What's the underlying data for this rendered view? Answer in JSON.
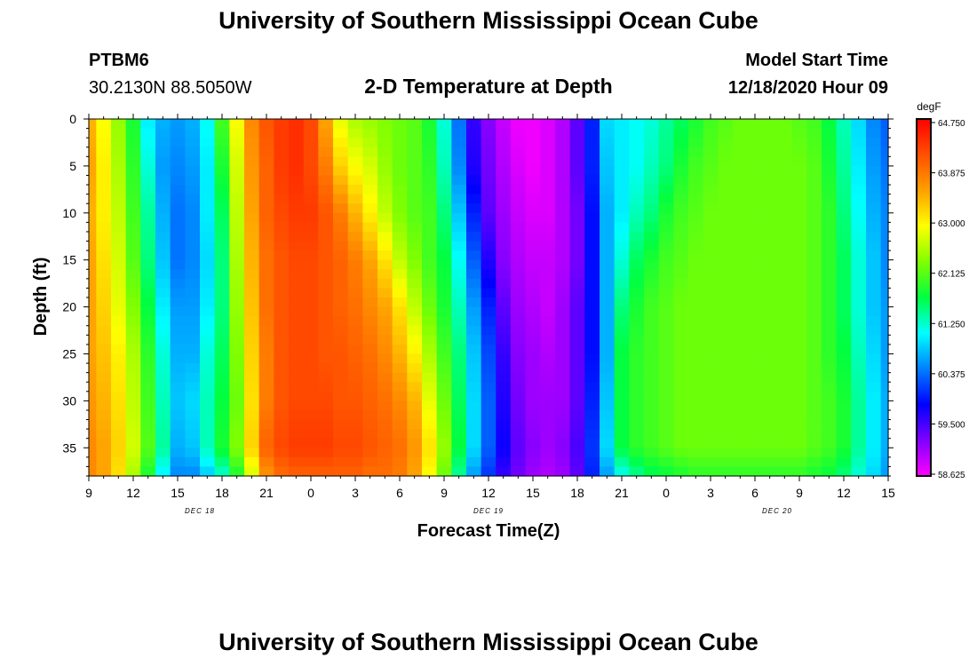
{
  "page": {
    "title_top": "University of Southern Mississippi Ocean Cube",
    "title_bottom": "University of Southern Mississippi Ocean Cube",
    "station_id": "PTBM6",
    "station_coords": "30.2130N 88.5050W",
    "plot_title": "2-D Temperature at Depth",
    "model_start_label": "Model Start Time",
    "model_start_value": "12/18/2020 Hour 09"
  },
  "chart_data": {
    "type": "heatmap",
    "title": "2-D Temperature at Depth",
    "xlabel": "Forecast Time(Z)",
    "ylabel": "Depth (ft)",
    "units": "degF",
    "xlim": [
      0,
      54
    ],
    "ylim": [
      0,
      38
    ],
    "x_ticks": [
      {
        "h": 0,
        "label": "9"
      },
      {
        "h": 3,
        "label": "12"
      },
      {
        "h": 6,
        "label": "15"
      },
      {
        "h": 9,
        "label": "18"
      },
      {
        "h": 12,
        "label": "21"
      },
      {
        "h": 15,
        "label": "0"
      },
      {
        "h": 18,
        "label": "3"
      },
      {
        "h": 21,
        "label": "6"
      },
      {
        "h": 24,
        "label": "9"
      },
      {
        "h": 27,
        "label": "12"
      },
      {
        "h": 30,
        "label": "15"
      },
      {
        "h": 33,
        "label": "18"
      },
      {
        "h": 36,
        "label": "21"
      },
      {
        "h": 39,
        "label": "0"
      },
      {
        "h": 42,
        "label": "3"
      },
      {
        "h": 45,
        "label": "6"
      },
      {
        "h": 48,
        "label": "9"
      },
      {
        "h": 51,
        "label": "12"
      },
      {
        "h": 54,
        "label": "15"
      }
    ],
    "date_labels": [
      {
        "h": 7.5,
        "label": "DEC 18"
      },
      {
        "h": 27,
        "label": "DEC 19"
      },
      {
        "h": 46.5,
        "label": "DEC 20"
      }
    ],
    "y_ticks": [
      0,
      5,
      10,
      15,
      20,
      25,
      30,
      35
    ],
    "colorbar": {
      "units": "degF",
      "min": 58.625,
      "max": 64.75,
      "labels": [
        "64.750",
        "63.875",
        "63.000",
        "62.125",
        "61.250",
        "60.375",
        "59.500",
        "58.625"
      ],
      "colors": [
        "#ff00ff",
        "#8000ff",
        "#0000ff",
        "#0080ff",
        "#00ffff",
        "#00ff40",
        "#80ff00",
        "#ffff00",
        "#ffa000",
        "#ff5000",
        "#ff0000"
      ]
    },
    "x": [
      0,
      1,
      2,
      3,
      4,
      5,
      6,
      7,
      8,
      9,
      10,
      11,
      12,
      13,
      14,
      15,
      16,
      17,
      18,
      19,
      20,
      21,
      22,
      23,
      24,
      25,
      26,
      27,
      28,
      29,
      30,
      31,
      32,
      33,
      34,
      35,
      36,
      37,
      38,
      39,
      40,
      41,
      42,
      43,
      44,
      45,
      46,
      47,
      48,
      49,
      50,
      51,
      52,
      53,
      54
    ],
    "depth": [
      0,
      5,
      10,
      15,
      20,
      25,
      30,
      35,
      38
    ],
    "z": [
      [
        63.4,
        63.5,
        63.4,
        63.5,
        63.5,
        63.5,
        63.6,
        63.7,
        63.7
      ],
      [
        62.9,
        63.0,
        63.0,
        63.1,
        63.2,
        63.3,
        63.4,
        63.5,
        63.5
      ],
      [
        62.4,
        62.5,
        62.6,
        62.7,
        62.8,
        63.0,
        63.1,
        63.2,
        63.1
      ],
      [
        61.8,
        61.9,
        62.0,
        62.1,
        62.3,
        62.5,
        62.6,
        62.7,
        62.5
      ],
      [
        61.0,
        61.2,
        61.4,
        61.5,
        61.7,
        61.9,
        62.0,
        62.1,
        61.8
      ],
      [
        60.7,
        60.6,
        60.7,
        60.8,
        61.0,
        61.2,
        61.3,
        61.4,
        61.0
      ],
      [
        60.6,
        60.5,
        60.4,
        60.4,
        60.6,
        60.7,
        60.8,
        60.7,
        60.5
      ],
      [
        60.7,
        60.6,
        60.5,
        60.5,
        60.6,
        60.7,
        60.9,
        60.8,
        60.5
      ],
      [
        61.1,
        61.0,
        61.0,
        60.9,
        61.0,
        61.2,
        61.3,
        61.3,
        60.8
      ],
      [
        62.0,
        61.8,
        61.6,
        61.5,
        61.5,
        61.6,
        61.7,
        61.8,
        61.2
      ],
      [
        62.9,
        62.7,
        62.6,
        62.5,
        62.4,
        62.3,
        62.2,
        62.3,
        61.8
      ],
      [
        63.7,
        63.6,
        63.5,
        63.4,
        63.3,
        63.2,
        63.1,
        63.2,
        62.7
      ],
      [
        64.1,
        64.0,
        64.0,
        63.9,
        63.9,
        63.8,
        63.8,
        64.0,
        63.6
      ],
      [
        64.3,
        64.3,
        64.2,
        64.1,
        64.1,
        64.1,
        64.1,
        64.2,
        63.9
      ],
      [
        64.4,
        64.4,
        64.3,
        64.2,
        64.2,
        64.2,
        64.2,
        64.3,
        64.0
      ],
      [
        64.2,
        64.2,
        64.3,
        64.2,
        64.2,
        64.2,
        64.2,
        64.3,
        64.0
      ],
      [
        63.5,
        63.8,
        64.1,
        64.1,
        64.1,
        64.1,
        64.2,
        64.3,
        64.0
      ],
      [
        62.8,
        63.2,
        63.8,
        64.0,
        64.0,
        64.1,
        64.1,
        64.2,
        64.0
      ],
      [
        62.5,
        62.9,
        63.4,
        63.8,
        63.9,
        64.0,
        64.1,
        64.2,
        64.0
      ],
      [
        62.4,
        62.7,
        63.0,
        63.5,
        63.7,
        63.9,
        64.0,
        64.1,
        63.9
      ],
      [
        62.3,
        62.4,
        62.6,
        63.1,
        63.5,
        63.7,
        63.9,
        64.0,
        63.9
      ],
      [
        62.2,
        62.2,
        62.3,
        62.6,
        63.1,
        63.4,
        63.7,
        63.9,
        63.8
      ],
      [
        62.1,
        62.1,
        62.1,
        62.3,
        62.6,
        63.0,
        63.4,
        63.6,
        63.5
      ],
      [
        61.8,
        61.9,
        62.0,
        62.0,
        62.2,
        62.5,
        62.8,
        63.1,
        62.9
      ],
      [
        61.2,
        61.3,
        61.5,
        61.7,
        61.8,
        62.0,
        62.2,
        62.4,
        62.2
      ],
      [
        60.4,
        60.5,
        60.8,
        61.1,
        61.3,
        61.5,
        61.6,
        61.7,
        61.4
      ],
      [
        59.6,
        59.7,
        60.0,
        60.3,
        60.6,
        60.8,
        60.9,
        60.9,
        60.6
      ],
      [
        59.2,
        59.3,
        59.4,
        59.7,
        60.0,
        60.2,
        60.3,
        60.3,
        60.1
      ],
      [
        58.9,
        59.0,
        59.1,
        59.2,
        59.4,
        59.6,
        59.7,
        59.8,
        59.6
      ],
      [
        58.7,
        58.8,
        58.9,
        59.0,
        59.1,
        59.2,
        59.3,
        59.4,
        59.3
      ],
      [
        58.7,
        58.7,
        58.8,
        58.9,
        59.0,
        59.1,
        59.1,
        59.2,
        59.1
      ],
      [
        58.8,
        58.8,
        58.8,
        58.9,
        58.9,
        59.0,
        59.1,
        59.1,
        59.0
      ],
      [
        59.0,
        59.0,
        59.0,
        59.0,
        59.1,
        59.1,
        59.1,
        59.2,
        59.1
      ],
      [
        59.4,
        59.4,
        59.3,
        59.3,
        59.4,
        59.4,
        59.4,
        59.5,
        59.4
      ],
      [
        60.0,
        60.0,
        59.9,
        59.9,
        59.9,
        59.9,
        60.0,
        60.1,
        60.0
      ],
      [
        60.9,
        60.8,
        60.7,
        60.7,
        60.7,
        60.7,
        60.8,
        60.9,
        60.6
      ],
      [
        61.0,
        61.0,
        61.0,
        61.2,
        61.5,
        61.7,
        61.7,
        61.7,
        61.1
      ],
      [
        61.1,
        61.1,
        61.3,
        61.6,
        61.8,
        61.9,
        61.9,
        61.9,
        61.4
      ],
      [
        61.2,
        61.3,
        61.5,
        61.8,
        62.0,
        62.0,
        62.0,
        62.0,
        61.6
      ],
      [
        61.4,
        61.5,
        61.8,
        62.0,
        62.1,
        62.1,
        62.1,
        62.1,
        61.7
      ],
      [
        61.6,
        61.8,
        62.0,
        62.1,
        62.2,
        62.2,
        62.2,
        62.2,
        61.8
      ],
      [
        61.8,
        62.0,
        62.1,
        62.2,
        62.2,
        62.2,
        62.2,
        62.2,
        61.9
      ],
      [
        62.0,
        62.1,
        62.2,
        62.2,
        62.2,
        62.2,
        62.2,
        62.2,
        61.9
      ],
      [
        62.1,
        62.2,
        62.2,
        62.2,
        62.2,
        62.2,
        62.2,
        62.2,
        61.9
      ],
      [
        62.2,
        62.2,
        62.2,
        62.2,
        62.2,
        62.2,
        62.2,
        62.2,
        61.9
      ],
      [
        62.2,
        62.2,
        62.2,
        62.2,
        62.2,
        62.2,
        62.2,
        62.2,
        61.9
      ],
      [
        62.2,
        62.2,
        62.2,
        62.2,
        62.2,
        62.2,
        62.2,
        62.2,
        61.9
      ],
      [
        62.2,
        62.2,
        62.2,
        62.2,
        62.2,
        62.2,
        62.2,
        62.2,
        61.9
      ],
      [
        62.1,
        62.2,
        62.2,
        62.2,
        62.2,
        62.2,
        62.2,
        62.2,
        61.9
      ],
      [
        62.0,
        62.1,
        62.1,
        62.1,
        62.1,
        62.1,
        62.1,
        62.1,
        61.8
      ],
      [
        61.7,
        61.8,
        61.9,
        61.9,
        61.9,
        61.9,
        62.0,
        62.0,
        61.7
      ],
      [
        61.3,
        61.4,
        61.5,
        61.6,
        61.6,
        61.7,
        61.8,
        61.8,
        61.5
      ],
      [
        60.9,
        61.0,
        61.1,
        61.2,
        61.2,
        61.3,
        61.4,
        61.4,
        61.2
      ],
      [
        60.5,
        60.6,
        60.7,
        60.8,
        60.8,
        60.9,
        61.0,
        61.0,
        60.9
      ],
      [
        60.3,
        60.4,
        60.5,
        60.5,
        60.6,
        60.6,
        60.7,
        60.7,
        60.6
      ]
    ]
  }
}
